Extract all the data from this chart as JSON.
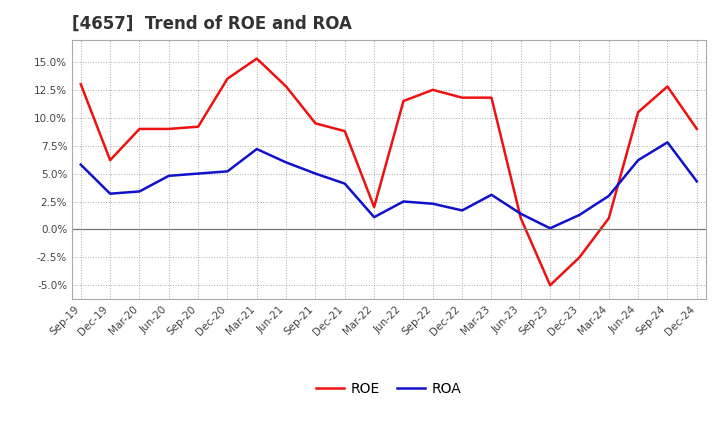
{
  "title": "[4657]  Trend of ROE and ROA",
  "labels": [
    "Sep-19",
    "Dec-19",
    "Mar-20",
    "Jun-20",
    "Sep-20",
    "Dec-20",
    "Mar-21",
    "Jun-21",
    "Sep-21",
    "Dec-21",
    "Mar-22",
    "Jun-22",
    "Sep-22",
    "Dec-22",
    "Mar-23",
    "Jun-23",
    "Sep-23",
    "Dec-23",
    "Mar-24",
    "Jun-24",
    "Sep-24",
    "Dec-24"
  ],
  "ROE": [
    13.0,
    6.2,
    9.0,
    9.0,
    9.2,
    13.5,
    15.3,
    12.8,
    9.5,
    8.8,
    2.0,
    11.5,
    12.5,
    11.8,
    11.8,
    1.0,
    -5.0,
    -2.5,
    1.0,
    10.5,
    12.8,
    9.0
  ],
  "ROA": [
    5.8,
    3.2,
    3.4,
    4.8,
    5.0,
    5.2,
    7.2,
    6.0,
    5.0,
    4.1,
    1.1,
    2.5,
    2.3,
    1.7,
    3.1,
    1.4,
    0.1,
    1.3,
    3.0,
    6.2,
    7.8,
    4.3
  ],
  "ROE_color": "#ee1111",
  "ROA_color": "#1111cc",
  "bg_color": "#ffffff",
  "plot_bg_color": "#ffffff",
  "grid_color": "#aaaaaa",
  "ylim": [
    -6.25,
    17.0
  ],
  "yticks": [
    -5.0,
    -2.5,
    0.0,
    2.5,
    5.0,
    7.5,
    10.0,
    12.5,
    15.0
  ],
  "title_fontsize": 12,
  "legend_fontsize": 10,
  "tick_fontsize": 7.5
}
